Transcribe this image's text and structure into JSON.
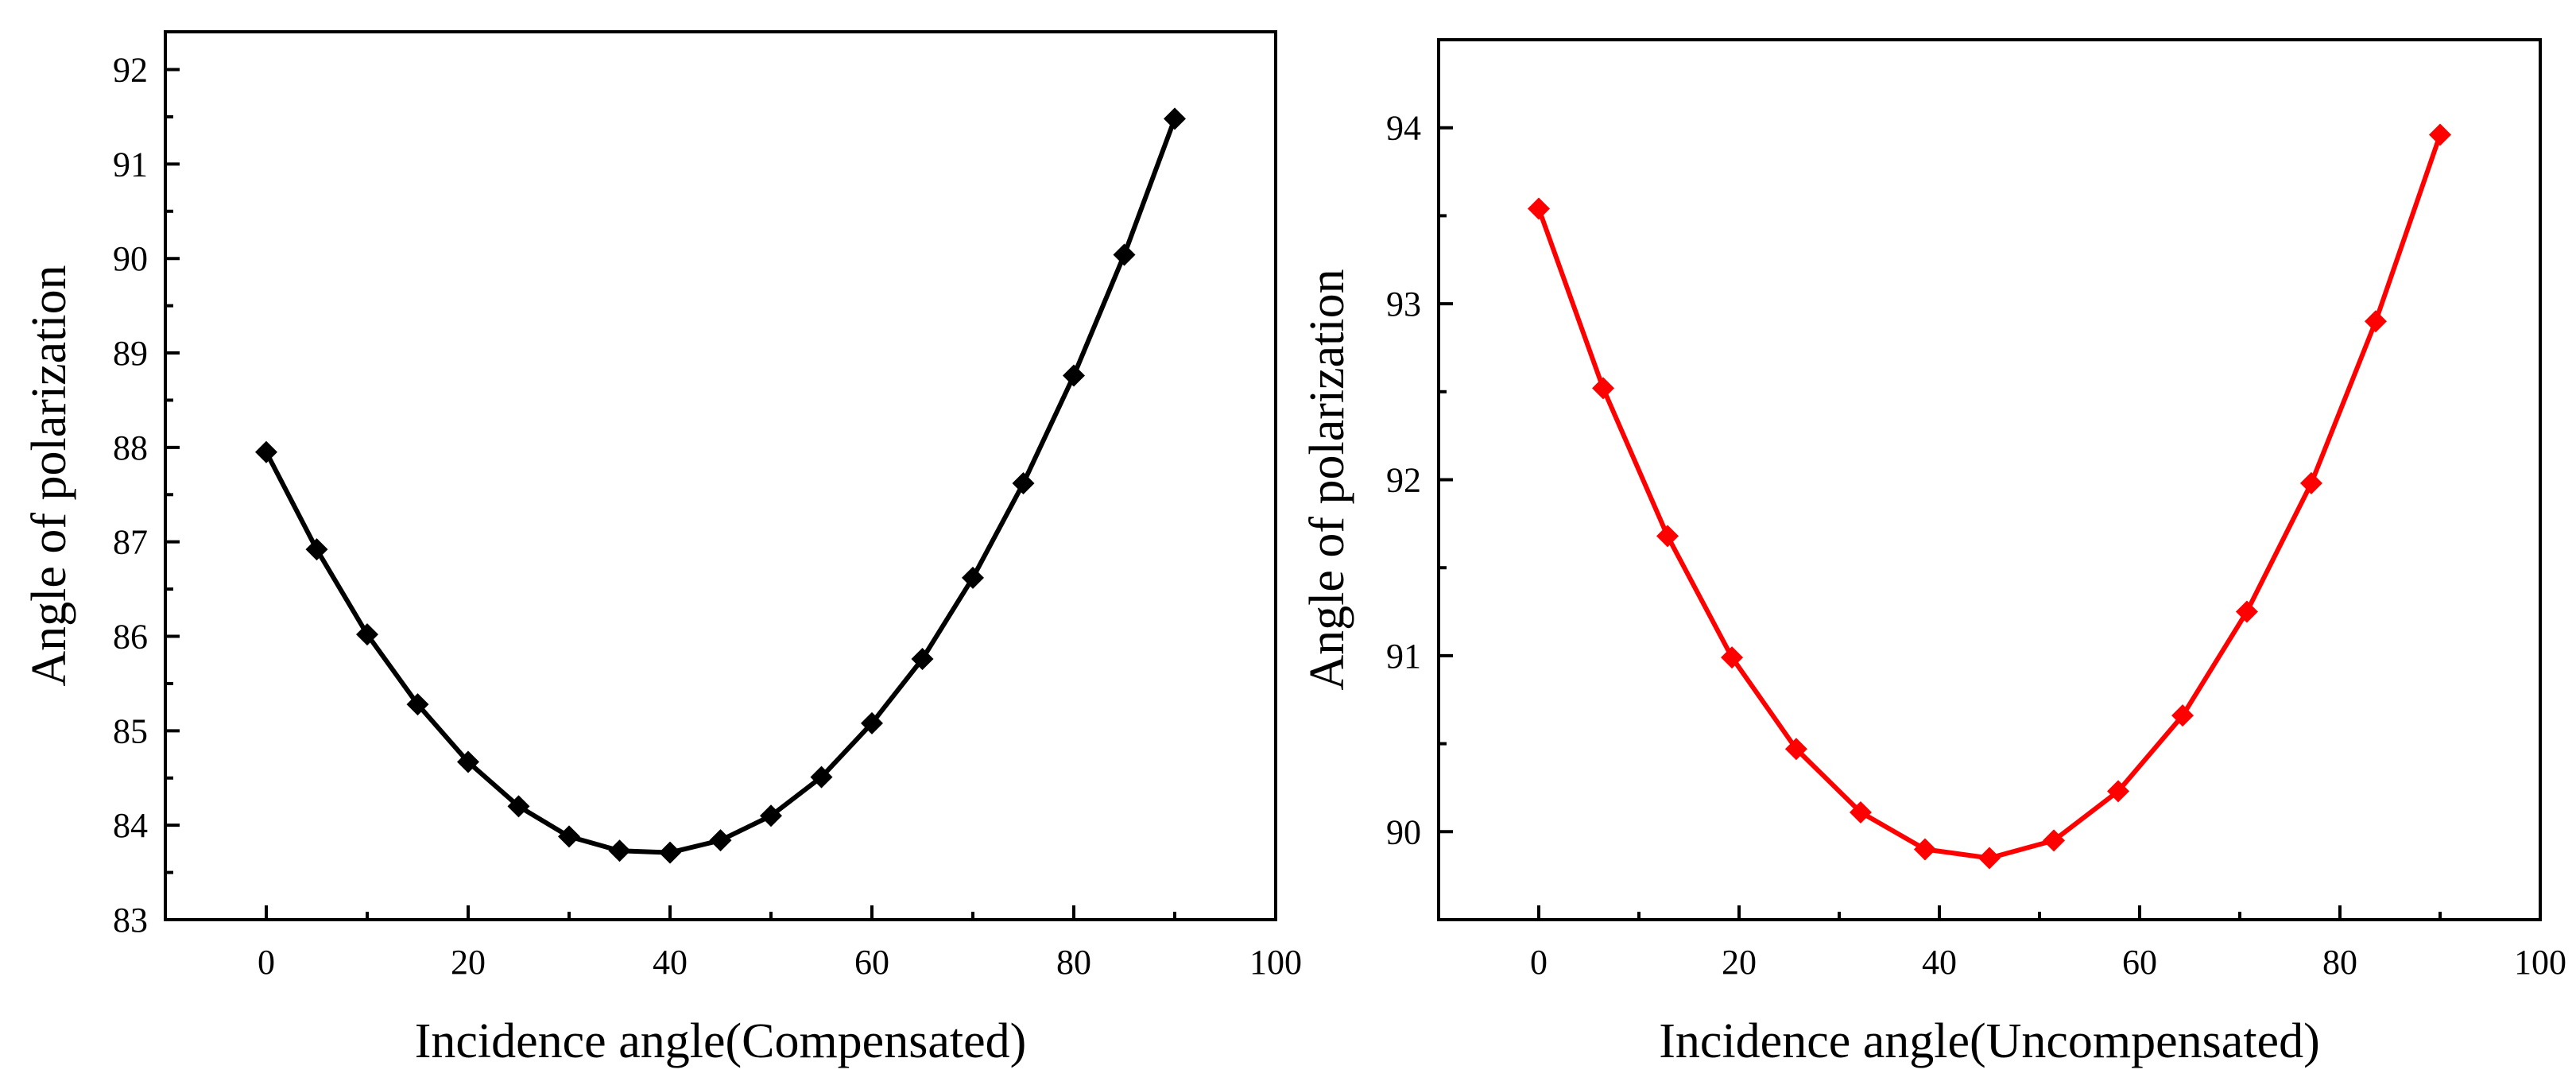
{
  "chart_data": [
    {
      "type": "line",
      "title": "",
      "xlabel": "Incidence angle(Compensated)",
      "ylabel": "Angle of polarization",
      "xlim": [
        -10,
        100
      ],
      "ylim": [
        83,
        92.4
      ],
      "xticks": [
        0,
        20,
        40,
        60,
        80,
        100
      ],
      "yticks": [
        83,
        84,
        85,
        86,
        87,
        88,
        89,
        90,
        91,
        92
      ],
      "grid": false,
      "series": [
        {
          "name": "Compensated",
          "color": "#000000",
          "marker": "diamond",
          "x": [
            0,
            5,
            10,
            15,
            20,
            25,
            30,
            35,
            40,
            45,
            50,
            55,
            60,
            65,
            70,
            75,
            80,
            85,
            90
          ],
          "y": [
            87.95,
            86.92,
            86.02,
            85.28,
            84.67,
            84.2,
            83.88,
            83.73,
            83.71,
            83.84,
            84.1,
            84.51,
            85.08,
            85.76,
            86.62,
            87.62,
            88.76,
            90.04,
            91.48
          ]
        }
      ]
    },
    {
      "type": "line",
      "title": "",
      "xlabel": "Incidence angle(Uncompensated)",
      "ylabel": "Angle of polarization",
      "xlim": [
        -10,
        100
      ],
      "ylim": [
        89.5,
        94.5
      ],
      "xticks": [
        0,
        20,
        40,
        60,
        80,
        100
      ],
      "yticks": [
        90,
        91,
        92,
        93,
        94
      ],
      "grid": false,
      "series": [
        {
          "name": "Uncompensated",
          "color": "#ff0000",
          "marker": "diamond",
          "x": [
            0,
            6.43,
            12.86,
            19.29,
            25.71,
            32.14,
            38.57,
            45,
            51.43,
            57.86,
            64.29,
            70.71,
            77.14,
            83.57,
            90
          ],
          "y": [
            93.54,
            92.52,
            91.68,
            90.99,
            90.47,
            90.11,
            89.9,
            89.85,
            89.95,
            90.23,
            90.66,
            91.25,
            91.98,
            92.9,
            93.96
          ]
        }
      ]
    }
  ]
}
